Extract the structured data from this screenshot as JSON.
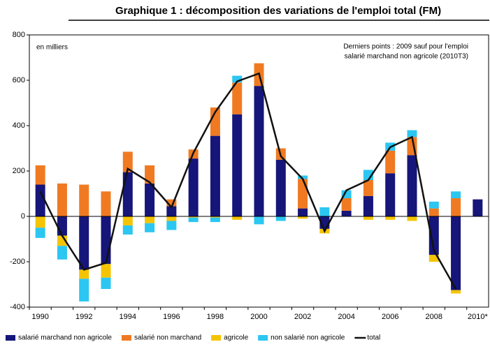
{
  "chart_data": {
    "type": "bar",
    "stacked": true,
    "title": "Graphique 1 : décomposition des variations de l'emploi total (FM)",
    "annotations": [
      "en milliers",
      "Derniers points : 2009 sauf pour l'emploi",
      "salarié marchand non agricole (2010T3)"
    ],
    "categories": [
      "1990",
      null,
      "1992",
      null,
      "1994",
      null,
      "1996",
      null,
      "1998",
      null,
      "2000",
      null,
      "2002",
      null,
      "2004",
      null,
      "2006",
      null,
      "2008",
      null,
      "2010*"
    ],
    "series": [
      {
        "name": "salarié marchand non agricole",
        "color": "#15157a",
        "type": "bar",
        "values": [
          140,
          -85,
          -235,
          -210,
          195,
          145,
          45,
          255,
          355,
          450,
          575,
          250,
          35,
          -55,
          25,
          90,
          190,
          270,
          -170,
          -325,
          75
        ]
      },
      {
        "name": "salarié non marchand",
        "color": "#f07a22",
        "type": "bar",
        "values": [
          85,
          145,
          140,
          110,
          90,
          80,
          30,
          40,
          125,
          140,
          100,
          50,
          130,
          null,
          55,
          70,
          100,
          80,
          35,
          80,
          null
        ]
      },
      {
        "name": "agricole",
        "color": "#f5c400",
        "type": "bar",
        "values": [
          -50,
          -45,
          -40,
          -60,
          -40,
          -30,
          -20,
          -5,
          -5,
          -15,
          null,
          null,
          -10,
          -20,
          null,
          -15,
          -15,
          -20,
          -30,
          -15,
          null
        ]
      },
      {
        "name": "non salarié non agricole",
        "color": "#2cc6f2",
        "type": "bar",
        "values": [
          -45,
          -60,
          -100,
          -50,
          -40,
          -40,
          -40,
          -20,
          -20,
          30,
          -35,
          -20,
          15,
          40,
          35,
          45,
          35,
          30,
          30,
          30,
          null
        ]
      },
      {
        "name": "total",
        "color": "#111111",
        "type": "line",
        "values": [
          110,
          -85,
          -235,
          -205,
          210,
          150,
          40,
          280,
          460,
          595,
          630,
          265,
          165,
          -65,
          115,
          160,
          305,
          350,
          -150,
          -320,
          null
        ]
      }
    ],
    "ylim": [
      -400,
      800
    ],
    "yticks": [
      -400,
      -200,
      0,
      200,
      400,
      600,
      800
    ],
    "grid": false
  }
}
